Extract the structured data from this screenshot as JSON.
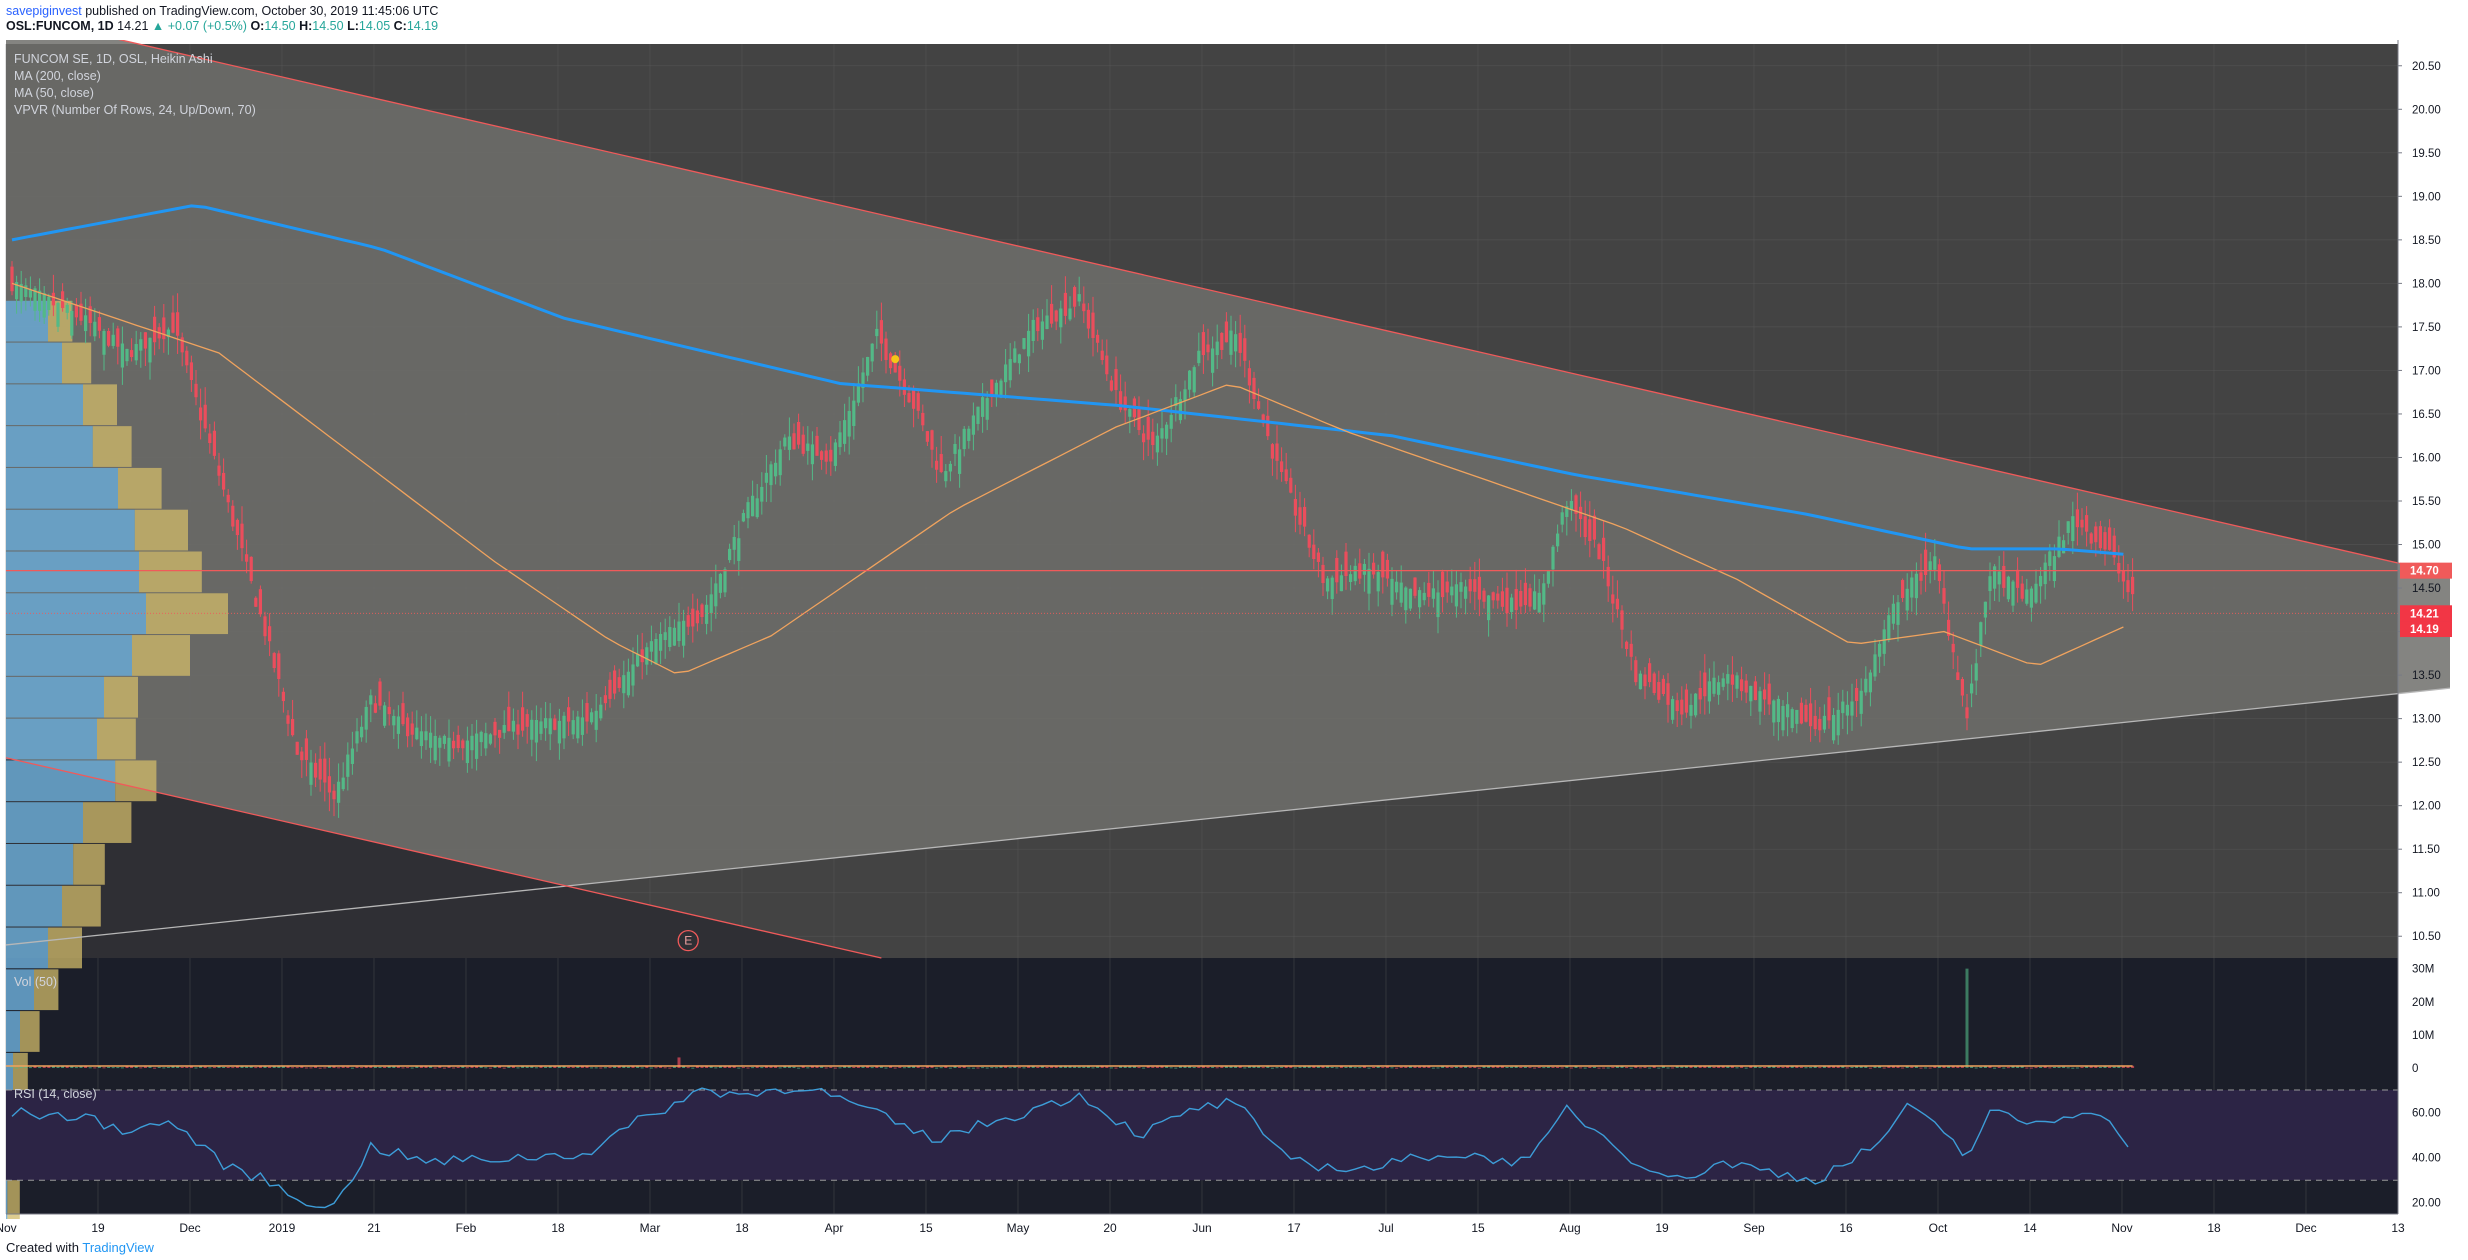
{
  "header": {
    "author": "savepiginvest",
    "published": "published on TradingView.com, October 30, 2019 11:45:06 UTC",
    "symbol": "OSL:FUNCOM, 1D",
    "last": "14.21",
    "change": "▲ +0.07 (+0.5%)",
    "o_label": "O:",
    "o_value": "14.50",
    "h_label": "H:",
    "h_value": "14.50",
    "l_label": "L:",
    "l_value": "14.05",
    "c_label": "C:",
    "c_value": "14.19"
  },
  "legend": {
    "line1": "FUNCOM SE, 1D, OSL, Heikin Ashi",
    "line2": "MA (200, close)",
    "line3": "MA (50, close)",
    "line4": "VPVR (Number Of Rows, 24, Up/Down, 70)"
  },
  "footer": {
    "created_with": "Created with",
    "brand": "TradingView"
  },
  "colors": {
    "pane_bg": "#434343",
    "triangle_fill": "#6e6e6b",
    "up": "#53b987",
    "down": "#eb4d5c",
    "ma200": "#2196f3",
    "ma50": "#f0a35e",
    "resistance": "#f05a5a",
    "support": "#b7b7b7",
    "vp_up": "#6aa9d3",
    "vp_down": "#d2bb6a",
    "rsi_bg": "#2c2445",
    "rsi_line": "#3d9dd8"
  },
  "chart_data": {
    "type": "candlestick",
    "price_axis": {
      "ylim": [
        10.25,
        20.75
      ],
      "ticks": [
        "10.50",
        "11.00",
        "11.50",
        "12.00",
        "12.50",
        "13.00",
        "13.50",
        "14.00",
        "14.50",
        "15.00",
        "15.50",
        "16.00",
        "16.50",
        "17.00",
        "17.50",
        "18.00",
        "18.50",
        "19.00",
        "19.50",
        "20.00",
        "20.50"
      ]
    },
    "x_axis": {
      "ticks": [
        "Nov",
        "19",
        "Dec",
        "2019",
        "21",
        "Feb",
        "18",
        "Mar",
        "18",
        "Apr",
        "15",
        "May",
        "20",
        "Jun",
        "17",
        "Jul",
        "15",
        "Aug",
        "19",
        "Sep",
        "16",
        "Oct",
        "14",
        "Nov",
        "18",
        "Dec",
        "13"
      ]
    },
    "price_labels": {
      "horizontal": "14.70",
      "last": "14.21",
      "close": "14.19"
    },
    "annotation": "E",
    "price_path": [
      [
        0,
        18.0
      ],
      [
        15,
        17.6
      ],
      [
        25,
        17.2
      ],
      [
        35,
        17.5
      ],
      [
        45,
        15.8
      ],
      [
        55,
        14.0
      ],
      [
        62,
        12.6
      ],
      [
        70,
        12.1
      ],
      [
        78,
        13.2
      ],
      [
        85,
        12.9
      ],
      [
        95,
        12.7
      ],
      [
        110,
        12.9
      ],
      [
        125,
        13.0
      ],
      [
        140,
        13.9
      ],
      [
        150,
        14.2
      ],
      [
        160,
        15.4
      ],
      [
        168,
        16.2
      ],
      [
        178,
        16.0
      ],
      [
        188,
        17.4
      ],
      [
        196,
        16.6
      ],
      [
        202,
        15.8
      ],
      [
        212,
        16.7
      ],
      [
        222,
        17.5
      ],
      [
        232,
        17.8
      ],
      [
        240,
        16.7
      ],
      [
        248,
        16.1
      ],
      [
        258,
        17.2
      ],
      [
        266,
        17.4
      ],
      [
        275,
        15.9
      ],
      [
        285,
        14.6
      ],
      [
        295,
        14.7
      ],
      [
        305,
        14.4
      ],
      [
        315,
        14.5
      ],
      [
        325,
        14.3
      ],
      [
        332,
        14.4
      ],
      [
        338,
        15.5
      ],
      [
        345,
        14.9
      ],
      [
        353,
        13.5
      ],
      [
        363,
        13.1
      ],
      [
        372,
        13.5
      ],
      [
        382,
        13.2
      ],
      [
        392,
        12.9
      ],
      [
        402,
        13.3
      ],
      [
        410,
        14.4
      ],
      [
        418,
        14.8
      ],
      [
        425,
        13.0
      ],
      [
        430,
        14.7
      ],
      [
        438,
        14.4
      ],
      [
        448,
        15.3
      ],
      [
        456,
        14.9
      ],
      [
        461,
        14.35
      ]
    ],
    "ma200_path": [
      [
        0,
        18.5
      ],
      [
        40,
        18.9
      ],
      [
        80,
        18.4
      ],
      [
        120,
        17.6
      ],
      [
        180,
        16.85
      ],
      [
        240,
        16.6
      ],
      [
        300,
        16.25
      ],
      [
        340,
        15.8
      ],
      [
        390,
        15.35
      ],
      [
        425,
        14.95
      ],
      [
        445,
        14.95
      ],
      [
        461,
        14.88
      ]
    ],
    "ma50_path": [
      [
        0,
        18.0
      ],
      [
        45,
        17.2
      ],
      [
        75,
        16.0
      ],
      [
        105,
        14.8
      ],
      [
        130,
        13.9
      ],
      [
        145,
        13.5
      ],
      [
        165,
        13.95
      ],
      [
        205,
        15.4
      ],
      [
        240,
        16.35
      ],
      [
        265,
        16.85
      ],
      [
        290,
        16.3
      ],
      [
        320,
        15.75
      ],
      [
        350,
        15.2
      ],
      [
        375,
        14.6
      ],
      [
        400,
        13.85
      ],
      [
        420,
        14.0
      ],
      [
        440,
        13.6
      ],
      [
        461,
        14.1
      ]
    ],
    "resistance_line": {
      "from": [
        0,
        21.1
      ],
      "to": [
        530,
        14.65
      ]
    },
    "support_line": {
      "from": [
        0,
        10.4
      ],
      "to": [
        530,
        13.35
      ]
    },
    "horizontal_line": 14.7,
    "volume": {
      "label": "Vol (50)",
      "ylim": [
        0,
        32
      ],
      "unit": "M",
      "ticks": [
        "0",
        "10M",
        "20M",
        "30M"
      ],
      "spike": {
        "x": 425,
        "value": 30
      },
      "ma_level": 0.6
    },
    "rsi": {
      "label": "RSI (14, close)",
      "ylim": [
        15,
        78
      ],
      "band": [
        30,
        70
      ],
      "ticks": [
        "20.00",
        "40.00",
        "60.00"
      ],
      "path": [
        [
          0,
          60
        ],
        [
          15,
          58
        ],
        [
          25,
          52
        ],
        [
          35,
          56
        ],
        [
          45,
          38
        ],
        [
          55,
          30
        ],
        [
          62,
          22
        ],
        [
          70,
          18
        ],
        [
          78,
          45
        ],
        [
          90,
          38
        ],
        [
          110,
          40
        ],
        [
          125,
          42
        ],
        [
          135,
          55
        ],
        [
          150,
          70
        ],
        [
          160,
          68
        ],
        [
          172,
          72
        ],
        [
          185,
          62
        ],
        [
          200,
          48
        ],
        [
          220,
          60
        ],
        [
          232,
          68
        ],
        [
          245,
          50
        ],
        [
          258,
          62
        ],
        [
          266,
          65
        ],
        [
          275,
          42
        ],
        [
          285,
          36
        ],
        [
          295,
          35
        ],
        [
          310,
          42
        ],
        [
          330,
          38
        ],
        [
          338,
          62
        ],
        [
          352,
          40
        ],
        [
          362,
          30
        ],
        [
          372,
          38
        ],
        [
          392,
          30
        ],
        [
          405,
          45
        ],
        [
          412,
          62
        ],
        [
          420,
          52
        ],
        [
          425,
          40
        ],
        [
          430,
          60
        ],
        [
          440,
          55
        ],
        [
          452,
          62
        ],
        [
          461,
          45
        ]
      ]
    }
  }
}
